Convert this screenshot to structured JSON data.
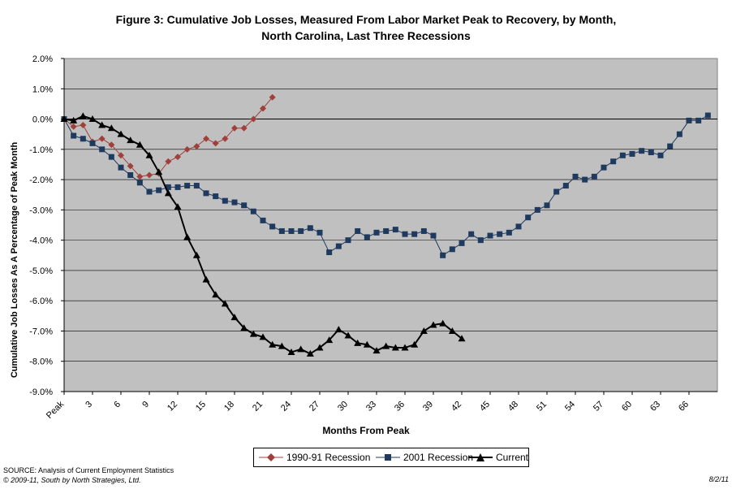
{
  "title_line1": "Figure 3: Cumulative Job Losses, Measured From Labor Market Peak to Recovery, by Month,",
  "title_line2": "North Carolina, Last Three Recessions",
  "source": "SOURCE: Analysis of Current Employment Statistics",
  "copyright": "© 2009-11, South by North Strategies, Ltd.",
  "date": "8/2/11",
  "chart_data": {
    "type": "line",
    "xlabel": "Months From Peak",
    "ylabel": "Cumulative Job Losses As A Percentage of Peak Month",
    "ylim": [
      -9,
      2
    ],
    "yticks": [
      "2.0%",
      "1.0%",
      "0.0%",
      "-1.0%",
      "-2.0%",
      "-3.0%",
      "-4.0%",
      "-5.0%",
      "-6.0%",
      "-7.0%",
      "-8.0%",
      "-9.0%"
    ],
    "xlim": [
      0,
      69
    ],
    "xtick_values": [
      0,
      3,
      6,
      9,
      12,
      15,
      18,
      21,
      24,
      27,
      30,
      33,
      36,
      39,
      42,
      45,
      48,
      51,
      54,
      57,
      60,
      63,
      66
    ],
    "xtick_labels": [
      "Peak",
      "3",
      "6",
      "9",
      "12",
      "15",
      "18",
      "21",
      "24",
      "27",
      "30",
      "33",
      "36",
      "39",
      "42",
      "45",
      "48",
      "51",
      "54",
      "57",
      "60",
      "63",
      "66"
    ],
    "grid": "horizontal",
    "background_color": "#c0c0c0",
    "legend_position": "bottom",
    "series": [
      {
        "name": "1990-91 Recession",
        "marker": "diamond",
        "color": "#a0403c",
        "values": [
          0,
          -0.25,
          -0.2,
          -0.75,
          -0.65,
          -0.85,
          -1.2,
          -1.55,
          -1.9,
          -1.85,
          -1.8,
          -1.4,
          -1.25,
          -1.0,
          -0.9,
          -0.65,
          -0.8,
          -0.65,
          -0.3,
          -0.3,
          0.0,
          0.35,
          0.72
        ]
      },
      {
        "name": "2001 Recession",
        "marker": "square",
        "color": "#1f3a5f",
        "values": [
          0,
          -0.55,
          -0.65,
          -0.8,
          -1.0,
          -1.25,
          -1.6,
          -1.85,
          -2.1,
          -2.4,
          -2.35,
          -2.25,
          -2.25,
          -2.2,
          -2.2,
          -2.45,
          -2.55,
          -2.7,
          -2.75,
          -2.85,
          -3.05,
          -3.35,
          -3.55,
          -3.7,
          -3.7,
          -3.7,
          -3.6,
          -3.75,
          -4.4,
          -4.2,
          -4.0,
          -3.7,
          -3.9,
          -3.75,
          -3.7,
          -3.65,
          -3.8,
          -3.8,
          -3.7,
          -3.85,
          -4.5,
          -4.3,
          -4.1,
          -3.8,
          -4.0,
          -3.85,
          -3.8,
          -3.75,
          -3.55,
          -3.25,
          -3.0,
          -2.85,
          -2.4,
          -2.2,
          -1.9,
          -2.0,
          -1.9,
          -1.6,
          -1.4,
          -1.2,
          -1.15,
          -1.05,
          -1.1,
          -1.2,
          -0.9,
          -0.5,
          -0.05,
          -0.05,
          0.12
        ]
      },
      {
        "name": "Current",
        "marker": "triangle",
        "color": "#000000",
        "values": [
          0,
          -0.05,
          0.1,
          0.0,
          -0.2,
          -0.3,
          -0.5,
          -0.7,
          -0.85,
          -1.2,
          -1.75,
          -2.45,
          -2.9,
          -3.9,
          -4.5,
          -5.3,
          -5.8,
          -6.1,
          -6.55,
          -6.9,
          -7.1,
          -7.2,
          -7.45,
          -7.5,
          -7.7,
          -7.6,
          -7.75,
          -7.55,
          -7.3,
          -6.95,
          -7.15,
          -7.4,
          -7.45,
          -7.65,
          -7.5,
          -7.55,
          -7.55,
          -7.45,
          -7.0,
          -6.8,
          -6.75,
          -7.0,
          -7.25
        ]
      }
    ]
  }
}
